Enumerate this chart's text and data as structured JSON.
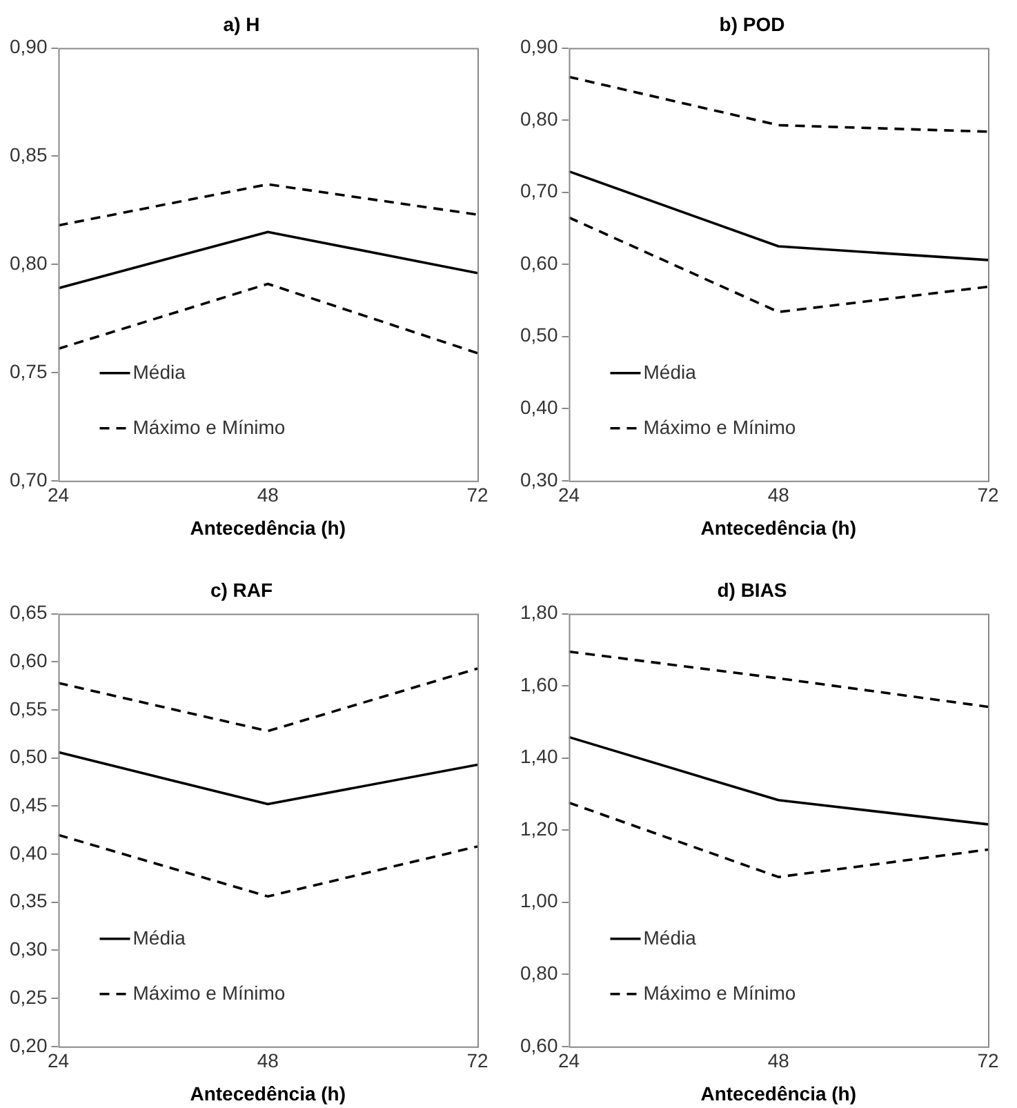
{
  "chart_data": [
    {
      "type": "line",
      "title": "a) H",
      "xlabel": "Antecedência (h)",
      "x": [
        24,
        48,
        72
      ],
      "xlim": [
        24,
        72
      ],
      "xticks": [
        24,
        48,
        72
      ],
      "ylim": [
        0.7,
        0.9
      ],
      "yticks": [
        {
          "value": 0.7,
          "label": "0,70"
        },
        {
          "value": 0.75,
          "label": "0,75"
        },
        {
          "value": 0.8,
          "label": "0,80"
        },
        {
          "value": 0.85,
          "label": "0,85"
        },
        {
          "value": 0.9,
          "label": "0,90"
        }
      ],
      "legend": "bottom left",
      "series": [
        {
          "name": "Média",
          "color": "#000000",
          "line_style": "solid",
          "values": [
            0.789,
            0.815,
            0.796
          ]
        },
        {
          "name": "Máximo e Mínimo",
          "color": "#000000",
          "line_style": "dashed",
          "values": [
            0.818,
            0.837,
            0.823
          ]
        },
        {
          "color": "#000000",
          "line_style": "dashed",
          "values": [
            0.761,
            0.791,
            0.759
          ]
        }
      ]
    },
    {
      "type": "line",
      "title": "b) POD",
      "xlabel": "Antecedência (h)",
      "x": [
        24,
        48,
        72
      ],
      "xlim": [
        24,
        72
      ],
      "xticks": [
        24,
        48,
        72
      ],
      "ylim": [
        0.3,
        0.9
      ],
      "yticks": [
        {
          "value": 0.3,
          "label": "0,30"
        },
        {
          "value": 0.4,
          "label": "0,40"
        },
        {
          "value": 0.5,
          "label": "0,50"
        },
        {
          "value": 0.6,
          "label": "0,60"
        },
        {
          "value": 0.7,
          "label": "0,70"
        },
        {
          "value": 0.8,
          "label": "0,80"
        },
        {
          "value": 0.9,
          "label": "0,90"
        }
      ],
      "legend": "bottom left",
      "series": [
        {
          "name": "Média",
          "color": "#000000",
          "line_style": "solid",
          "values": [
            0.729,
            0.625,
            0.606
          ]
        },
        {
          "name": "Máximo e Mínimo",
          "color": "#000000",
          "line_style": "dashed",
          "values": [
            0.86,
            0.793,
            0.784
          ]
        },
        {
          "color": "#000000",
          "line_style": "dashed",
          "values": [
            0.665,
            0.534,
            0.569
          ]
        }
      ]
    },
    {
      "type": "line",
      "title": "c) RAF",
      "xlabel": "Antecedência (h)",
      "x": [
        24,
        48,
        72
      ],
      "xlim": [
        24,
        72
      ],
      "xticks": [
        24,
        48,
        72
      ],
      "ylim": [
        0.2,
        0.65
      ],
      "yticks": [
        {
          "value": 0.2,
          "label": "0,20"
        },
        {
          "value": 0.25,
          "label": "0,25"
        },
        {
          "value": 0.3,
          "label": "0,30"
        },
        {
          "value": 0.35,
          "label": "0,35"
        },
        {
          "value": 0.4,
          "label": "0,40"
        },
        {
          "value": 0.45,
          "label": "0,45"
        },
        {
          "value": 0.5,
          "label": "0,50"
        },
        {
          "value": 0.55,
          "label": "0,55"
        },
        {
          "value": 0.6,
          "label": "0,60"
        },
        {
          "value": 0.65,
          "label": "0,65"
        }
      ],
      "legend": "bottom left",
      "series": [
        {
          "name": "Média",
          "color": "#000000",
          "line_style": "solid",
          "values": [
            0.506,
            0.452,
            0.493
          ]
        },
        {
          "name": "Máximo e Mínimo",
          "color": "#000000",
          "line_style": "dashed",
          "values": [
            0.578,
            0.528,
            0.593
          ]
        },
        {
          "color": "#000000",
          "line_style": "dashed",
          "values": [
            0.42,
            0.356,
            0.408
          ]
        }
      ]
    },
    {
      "type": "line",
      "title": "d) BIAS",
      "xlabel": "Antecedência (h)",
      "x": [
        24,
        48,
        72
      ],
      "xlim": [
        24,
        72
      ],
      "xticks": [
        24,
        48,
        72
      ],
      "ylim": [
        0.6,
        1.8
      ],
      "yticks": [
        {
          "value": 0.6,
          "label": "0,60"
        },
        {
          "value": 0.8,
          "label": "0,80"
        },
        {
          "value": 1.0,
          "label": "1,00"
        },
        {
          "value": 1.2,
          "label": "1,20"
        },
        {
          "value": 1.4,
          "label": "1,40"
        },
        {
          "value": 1.6,
          "label": "1,60"
        },
        {
          "value": 1.8,
          "label": "1,80"
        }
      ],
      "legend": "bottom left",
      "series": [
        {
          "name": "Média",
          "color": "#000000",
          "line_style": "solid",
          "values": [
            1.458,
            1.283,
            1.216
          ]
        },
        {
          "name": "Máximo e Mínimo",
          "color": "#000000",
          "line_style": "dashed",
          "values": [
            1.695,
            1.621,
            1.542
          ]
        },
        {
          "color": "#000000",
          "line_style": "dashed",
          "values": [
            1.276,
            1.07,
            1.146
          ]
        }
      ]
    }
  ]
}
